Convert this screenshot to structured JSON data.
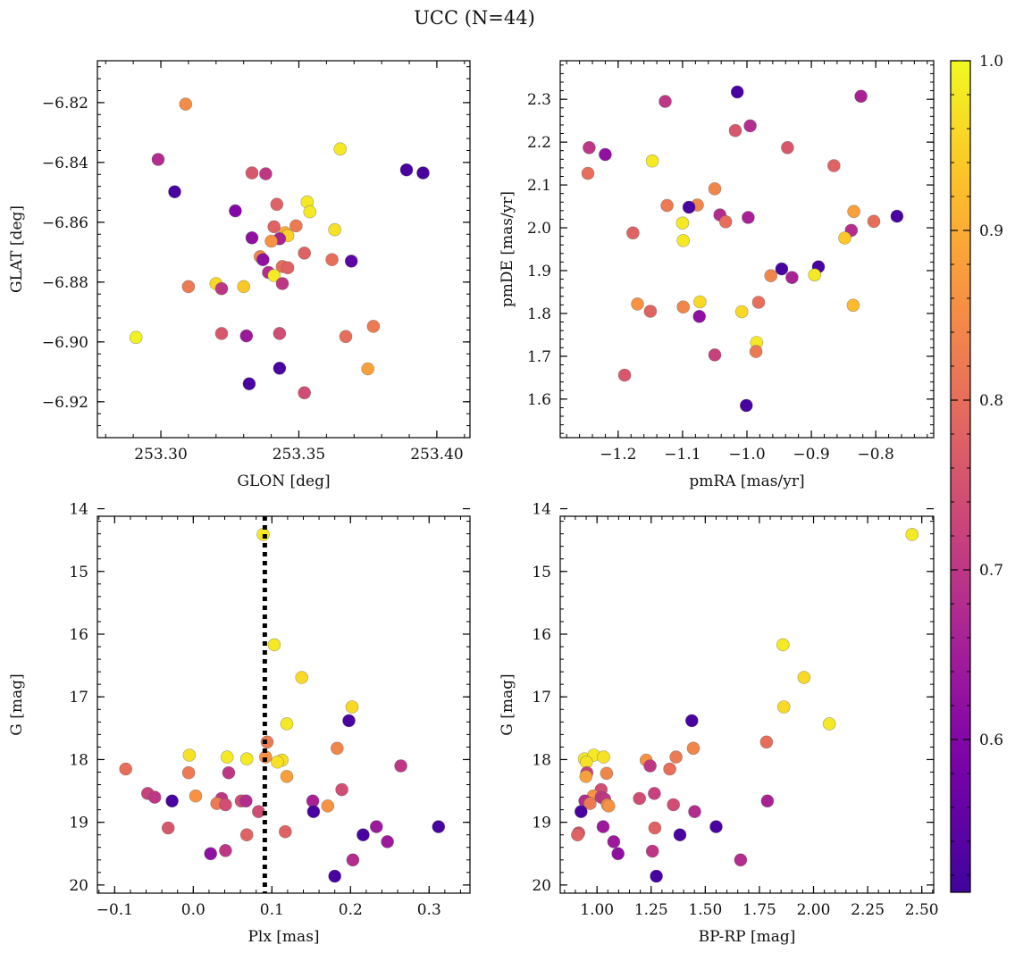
{
  "figure": {
    "title": "UCC (N=44)"
  },
  "colorbar": {
    "colormap": "plasma",
    "min": 0.51,
    "max": 1.0,
    "ticks": [
      0.6,
      0.7,
      0.8,
      0.9,
      1.0
    ],
    "tick_labels": [
      "0.6",
      "0.7",
      "0.8",
      "0.9",
      "1.0"
    ]
  },
  "chart_data": [
    {
      "type": "scatter",
      "xlabel": "GLON [deg]",
      "ylabel": "GLAT [deg]",
      "xlim": [
        253.277,
        253.412
      ],
      "ylim": [
        -6.932,
        -6.806
      ],
      "y_inverted": false,
      "xticks": [
        253.3,
        253.35,
        253.4
      ],
      "xtick_labels": [
        "253.30",
        "253.35",
        "253.40"
      ],
      "yticks": [
        -6.92,
        -6.9,
        -6.88,
        -6.86,
        -6.84,
        -6.82
      ],
      "ytick_labels": [
        "−6.92",
        "−6.90",
        "−6.88",
        "−6.86",
        "−6.84",
        "−6.82"
      ],
      "points": [
        {
          "x": 253.309,
          "y": -6.8205,
          "c": 0.85
        },
        {
          "x": 253.365,
          "y": -6.8355,
          "c": 0.98
        },
        {
          "x": 253.299,
          "y": -6.839,
          "c": 0.68
        },
        {
          "x": 253.333,
          "y": -6.8435,
          "c": 0.76
        },
        {
          "x": 253.338,
          "y": -6.8438,
          "c": 0.7
        },
        {
          "x": 253.389,
          "y": -6.8425,
          "c": 0.52
        },
        {
          "x": 253.395,
          "y": -6.8435,
          "c": 0.52
        },
        {
          "x": 253.305,
          "y": -6.8498,
          "c": 0.52
        },
        {
          "x": 253.353,
          "y": -6.8532,
          "c": 0.98
        },
        {
          "x": 253.342,
          "y": -6.854,
          "c": 0.78
        },
        {
          "x": 253.354,
          "y": -6.8565,
          "c": 0.98
        },
        {
          "x": 253.327,
          "y": -6.8562,
          "c": 0.6
        },
        {
          "x": 253.363,
          "y": -6.8625,
          "c": 0.97
        },
        {
          "x": 253.349,
          "y": -6.8612,
          "c": 0.82
        },
        {
          "x": 253.341,
          "y": -6.8615,
          "c": 0.78
        },
        {
          "x": 253.345,
          "y": -6.8635,
          "c": 0.9
        },
        {
          "x": 253.346,
          "y": -6.8645,
          "c": 0.95
        },
        {
          "x": 253.333,
          "y": -6.8652,
          "c": 0.62
        },
        {
          "x": 253.343,
          "y": -6.8655,
          "c": 0.66
        },
        {
          "x": 253.34,
          "y": -6.8663,
          "c": 0.86
        },
        {
          "x": 253.352,
          "y": -6.8703,
          "c": 0.78
        },
        {
          "x": 253.336,
          "y": -6.8715,
          "c": 0.84
        },
        {
          "x": 253.337,
          "y": -6.8725,
          "c": 0.62
        },
        {
          "x": 253.362,
          "y": -6.8725,
          "c": 0.8
        },
        {
          "x": 253.369,
          "y": -6.873,
          "c": 0.55
        },
        {
          "x": 253.344,
          "y": -6.8748,
          "c": 0.8
        },
        {
          "x": 253.346,
          "y": -6.8752,
          "c": 0.78
        },
        {
          "x": 253.339,
          "y": -6.8768,
          "c": 0.68
        },
        {
          "x": 253.341,
          "y": -6.8778,
          "c": 0.98
        },
        {
          "x": 253.344,
          "y": -6.8805,
          "c": 0.7
        },
        {
          "x": 253.32,
          "y": -6.8805,
          "c": 0.96
        },
        {
          "x": 253.33,
          "y": -6.8815,
          "c": 0.94
        },
        {
          "x": 253.31,
          "y": -6.8815,
          "c": 0.82
        },
        {
          "x": 253.322,
          "y": -6.8822,
          "c": 0.7
        },
        {
          "x": 253.322,
          "y": -6.8972,
          "c": 0.76
        },
        {
          "x": 253.331,
          "y": -6.898,
          "c": 0.64
        },
        {
          "x": 253.343,
          "y": -6.8972,
          "c": 0.74
        },
        {
          "x": 253.367,
          "y": -6.8982,
          "c": 0.8
        },
        {
          "x": 253.377,
          "y": -6.8948,
          "c": 0.82
        },
        {
          "x": 253.291,
          "y": -6.8985,
          "c": 0.99
        },
        {
          "x": 253.343,
          "y": -6.9088,
          "c": 0.52
        },
        {
          "x": 253.375,
          "y": -6.909,
          "c": 0.88
        },
        {
          "x": 253.332,
          "y": -6.914,
          "c": 0.52
        },
        {
          "x": 253.352,
          "y": -6.917,
          "c": 0.74
        }
      ]
    },
    {
      "type": "scatter",
      "xlabel": "pmRA [mas/yr]",
      "ylabel": "pmDE [mas/yr]",
      "xlim": [
        -1.29,
        -0.71
      ],
      "ylim": [
        1.51,
        2.39
      ],
      "y_inverted": false,
      "xticks": [
        -1.2,
        -1.1,
        -1.0,
        -0.9,
        -0.8
      ],
      "xtick_labels": [
        "−1.2",
        "−1.1",
        "−1.0",
        "−0.9",
        "−0.8"
      ],
      "yticks": [
        1.6,
        1.7,
        1.8,
        1.9,
        2.0,
        2.1,
        2.2,
        2.3
      ],
      "ytick_labels": [
        "1.6",
        "1.7",
        "1.8",
        "1.9",
        "2.0",
        "2.1",
        "2.2",
        "2.3"
      ],
      "points": [
        {
          "x": -1.015,
          "y": 2.317,
          "c": 0.52
        },
        {
          "x": -1.127,
          "y": 2.295,
          "c": 0.7
        },
        {
          "x": -0.823,
          "y": 2.307,
          "c": 0.66
        },
        {
          "x": -0.995,
          "y": 2.238,
          "c": 0.68
        },
        {
          "x": -1.018,
          "y": 2.227,
          "c": 0.76
        },
        {
          "x": -1.245,
          "y": 2.187,
          "c": 0.7
        },
        {
          "x": -0.937,
          "y": 2.187,
          "c": 0.76
        },
        {
          "x": -1.22,
          "y": 2.171,
          "c": 0.62
        },
        {
          "x": -1.147,
          "y": 2.156,
          "c": 0.98
        },
        {
          "x": -0.865,
          "y": 2.145,
          "c": 0.78
        },
        {
          "x": -1.247,
          "y": 2.127,
          "c": 0.8
        },
        {
          "x": -1.05,
          "y": 2.091,
          "c": 0.84
        },
        {
          "x": -1.124,
          "y": 2.052,
          "c": 0.82
        },
        {
          "x": -1.077,
          "y": 2.053,
          "c": 0.84
        },
        {
          "x": -1.09,
          "y": 2.048,
          "c": 0.52
        },
        {
          "x": -0.834,
          "y": 2.038,
          "c": 0.88
        },
        {
          "x": -1.042,
          "y": 2.03,
          "c": 0.68
        },
        {
          "x": -0.998,
          "y": 2.024,
          "c": 0.66
        },
        {
          "x": -0.767,
          "y": 2.027,
          "c": 0.52
        },
        {
          "x": -1.033,
          "y": 2.014,
          "c": 0.8
        },
        {
          "x": -1.1,
          "y": 2.011,
          "c": 0.98
        },
        {
          "x": -0.803,
          "y": 2.015,
          "c": 0.8
        },
        {
          "x": -0.838,
          "y": 1.994,
          "c": 0.68
        },
        {
          "x": -1.177,
          "y": 1.988,
          "c": 0.78
        },
        {
          "x": -0.848,
          "y": 1.976,
          "c": 0.94
        },
        {
          "x": -1.099,
          "y": 1.97,
          "c": 0.98
        },
        {
          "x": -0.946,
          "y": 1.904,
          "c": 0.52
        },
        {
          "x": -0.889,
          "y": 1.909,
          "c": 0.52
        },
        {
          "x": -0.963,
          "y": 1.888,
          "c": 0.84
        },
        {
          "x": -0.895,
          "y": 1.89,
          "c": 0.98
        },
        {
          "x": -0.93,
          "y": 1.884,
          "c": 0.66
        },
        {
          "x": -0.982,
          "y": 1.826,
          "c": 0.8
        },
        {
          "x": -1.073,
          "y": 1.827,
          "c": 0.96
        },
        {
          "x": -1.17,
          "y": 1.822,
          "c": 0.86
        },
        {
          "x": -1.099,
          "y": 1.815,
          "c": 0.84
        },
        {
          "x": -0.835,
          "y": 1.819,
          "c": 0.92
        },
        {
          "x": -1.15,
          "y": 1.805,
          "c": 0.78
        },
        {
          "x": -1.008,
          "y": 1.804,
          "c": 0.96
        },
        {
          "x": -1.074,
          "y": 1.793,
          "c": 0.62
        },
        {
          "x": -0.985,
          "y": 1.732,
          "c": 0.98
        },
        {
          "x": -0.986,
          "y": 1.711,
          "c": 0.82
        },
        {
          "x": -1.05,
          "y": 1.703,
          "c": 0.72
        },
        {
          "x": -1.19,
          "y": 1.656,
          "c": 0.76
        },
        {
          "x": -1.001,
          "y": 1.585,
          "c": 0.52
        }
      ]
    },
    {
      "type": "scatter",
      "xlabel": "Plx [mas]",
      "ylabel": "G [mag]",
      "xlim": [
        -0.122,
        0.352
      ],
      "ylim": [
        14.12,
        20.13
      ],
      "y_inverted": true,
      "xticks": [
        -0.1,
        0.0,
        0.1,
        0.2,
        0.3
      ],
      "xtick_labels": [
        "−0.1",
        "0.0",
        "0.1",
        "0.2",
        "0.3"
      ],
      "yticks": [
        14,
        15,
        16,
        17,
        18,
        19,
        20
      ],
      "ytick_labels": [
        "14",
        "15",
        "16",
        "17",
        "18",
        "19",
        "20"
      ],
      "vline": {
        "x": 0.091,
        "style": "dotted"
      },
      "points": [
        {
          "x": 0.089,
          "y": 14.41,
          "c": 0.98
        },
        {
          "x": 0.103,
          "y": 16.17,
          "c": 0.98
        },
        {
          "x": 0.138,
          "y": 16.69,
          "c": 0.96
        },
        {
          "x": 0.202,
          "y": 17.16,
          "c": 0.96
        },
        {
          "x": 0.198,
          "y": 17.38,
          "c": 0.52
        },
        {
          "x": 0.119,
          "y": 17.43,
          "c": 0.98
        },
        {
          "x": 0.094,
          "y": 17.72,
          "c": 0.82
        },
        {
          "x": 0.183,
          "y": 17.82,
          "c": 0.84
        },
        {
          "x": -0.005,
          "y": 17.93,
          "c": 0.97
        },
        {
          "x": 0.043,
          "y": 17.96,
          "c": 0.98
        },
        {
          "x": 0.092,
          "y": 17.96,
          "c": 0.86
        },
        {
          "x": 0.068,
          "y": 17.99,
          "c": 0.98
        },
        {
          "x": 0.113,
          "y": 18.01,
          "c": 0.97
        },
        {
          "x": 0.107,
          "y": 18.04,
          "c": 0.97
        },
        {
          "x": 0.264,
          "y": 18.1,
          "c": 0.7
        },
        {
          "x": -0.086,
          "y": 18.15,
          "c": 0.8
        },
        {
          "x": -0.006,
          "y": 18.21,
          "c": 0.82
        },
        {
          "x": 0.045,
          "y": 18.21,
          "c": 0.7
        },
        {
          "x": 0.119,
          "y": 18.27,
          "c": 0.88
        },
        {
          "x": 0.189,
          "y": 18.48,
          "c": 0.74
        },
        {
          "x": -0.058,
          "y": 18.54,
          "c": 0.72
        },
        {
          "x": 0.003,
          "y": 18.58,
          "c": 0.86
        },
        {
          "x": -0.049,
          "y": 18.6,
          "c": 0.7
        },
        {
          "x": 0.036,
          "y": 18.62,
          "c": 0.7
        },
        {
          "x": -0.027,
          "y": 18.66,
          "c": 0.52
        },
        {
          "x": 0.061,
          "y": 18.66,
          "c": 0.74
        },
        {
          "x": 0.067,
          "y": 18.66,
          "c": 0.68
        },
        {
          "x": 0.152,
          "y": 18.66,
          "c": 0.66
        },
        {
          "x": 0.03,
          "y": 18.7,
          "c": 0.82
        },
        {
          "x": 0.041,
          "y": 18.72,
          "c": 0.74
        },
        {
          "x": 0.171,
          "y": 18.74,
          "c": 0.86
        },
        {
          "x": 0.083,
          "y": 18.83,
          "c": 0.74
        },
        {
          "x": 0.153,
          "y": 18.83,
          "c": 0.52
        },
        {
          "x": -0.032,
          "y": 19.09,
          "c": 0.76
        },
        {
          "x": 0.233,
          "y": 19.07,
          "c": 0.64
        },
        {
          "x": 0.312,
          "y": 19.07,
          "c": 0.52
        },
        {
          "x": 0.117,
          "y": 19.15,
          "c": 0.78
        },
        {
          "x": 0.068,
          "y": 19.2,
          "c": 0.78
        },
        {
          "x": 0.216,
          "y": 19.2,
          "c": 0.52
        },
        {
          "x": 0.247,
          "y": 19.31,
          "c": 0.64
        },
        {
          "x": 0.041,
          "y": 19.45,
          "c": 0.7
        },
        {
          "x": 0.022,
          "y": 19.5,
          "c": 0.62
        },
        {
          "x": 0.203,
          "y": 19.6,
          "c": 0.68
        },
        {
          "x": 0.18,
          "y": 19.86,
          "c": 0.52
        }
      ]
    },
    {
      "type": "scatter",
      "xlabel": "BP-RP [mag]",
      "ylabel": "G [mag]",
      "xlim": [
        0.83,
        2.555
      ],
      "ylim": [
        14.12,
        20.13
      ],
      "y_inverted": true,
      "xticks": [
        1.0,
        1.25,
        1.5,
        1.75,
        2.0,
        2.25,
        2.5
      ],
      "xtick_labels": [
        "1.00",
        "1.25",
        "1.50",
        "1.75",
        "2.00",
        "2.25",
        "2.50"
      ],
      "yticks": [
        14,
        15,
        16,
        17,
        18,
        19,
        20
      ],
      "ytick_labels": [
        "14",
        "15",
        "16",
        "17",
        "18",
        "19",
        "20"
      ],
      "points": [
        {
          "x": 2.455,
          "y": 14.41,
          "c": 0.98
        },
        {
          "x": 1.859,
          "y": 16.17,
          "c": 0.98
        },
        {
          "x": 1.956,
          "y": 16.69,
          "c": 0.96
        },
        {
          "x": 1.863,
          "y": 17.16,
          "c": 0.96
        },
        {
          "x": 2.073,
          "y": 17.43,
          "c": 0.98
        },
        {
          "x": 1.438,
          "y": 17.38,
          "c": 0.52
        },
        {
          "x": 1.783,
          "y": 17.72,
          "c": 0.8
        },
        {
          "x": 1.445,
          "y": 17.82,
          "c": 0.84
        },
        {
          "x": 0.942,
          "y": 17.99,
          "c": 0.98
        },
        {
          "x": 0.985,
          "y": 17.93,
          "c": 0.98
        },
        {
          "x": 1.03,
          "y": 17.96,
          "c": 0.97
        },
        {
          "x": 0.951,
          "y": 18.04,
          "c": 0.97
        },
        {
          "x": 1.227,
          "y": 18.01,
          "c": 0.86
        },
        {
          "x": 1.365,
          "y": 17.96,
          "c": 0.82
        },
        {
          "x": 1.245,
          "y": 18.1,
          "c": 0.7
        },
        {
          "x": 1.336,
          "y": 18.15,
          "c": 0.8
        },
        {
          "x": 1.044,
          "y": 18.22,
          "c": 0.84
        },
        {
          "x": 0.953,
          "y": 18.21,
          "c": 0.72
        },
        {
          "x": 0.949,
          "y": 18.27,
          "c": 0.88
        },
        {
          "x": 1.019,
          "y": 18.48,
          "c": 0.74
        },
        {
          "x": 1.265,
          "y": 18.54,
          "c": 0.72
        },
        {
          "x": 0.983,
          "y": 18.58,
          "c": 0.86
        },
        {
          "x": 1.019,
          "y": 18.6,
          "c": 0.7
        },
        {
          "x": 1.035,
          "y": 18.63,
          "c": 0.7
        },
        {
          "x": 1.196,
          "y": 18.62,
          "c": 0.74
        },
        {
          "x": 0.944,
          "y": 18.66,
          "c": 0.68
        },
        {
          "x": 1.787,
          "y": 18.66,
          "c": 0.66
        },
        {
          "x": 0.968,
          "y": 18.7,
          "c": 0.82
        },
        {
          "x": 1.048,
          "y": 18.72,
          "c": 0.86
        },
        {
          "x": 1.353,
          "y": 18.72,
          "c": 0.74
        },
        {
          "x": 1.054,
          "y": 18.74,
          "c": 0.86
        },
        {
          "x": 0.926,
          "y": 18.83,
          "c": 0.52
        },
        {
          "x": 1.451,
          "y": 18.83,
          "c": 0.68
        },
        {
          "x": 0.915,
          "y": 19.17,
          "c": 0.76
        },
        {
          "x": 0.91,
          "y": 19.2,
          "c": 0.78
        },
        {
          "x": 1.028,
          "y": 19.07,
          "c": 0.64
        },
        {
          "x": 1.267,
          "y": 19.09,
          "c": 0.78
        },
        {
          "x": 1.55,
          "y": 19.07,
          "c": 0.52
        },
        {
          "x": 1.383,
          "y": 19.2,
          "c": 0.52
        },
        {
          "x": 1.077,
          "y": 19.31,
          "c": 0.64
        },
        {
          "x": 1.256,
          "y": 19.46,
          "c": 0.7
        },
        {
          "x": 1.097,
          "y": 19.5,
          "c": 0.62
        },
        {
          "x": 1.663,
          "y": 19.6,
          "c": 0.68
        },
        {
          "x": 1.274,
          "y": 19.86,
          "c": 0.52
        }
      ]
    }
  ]
}
